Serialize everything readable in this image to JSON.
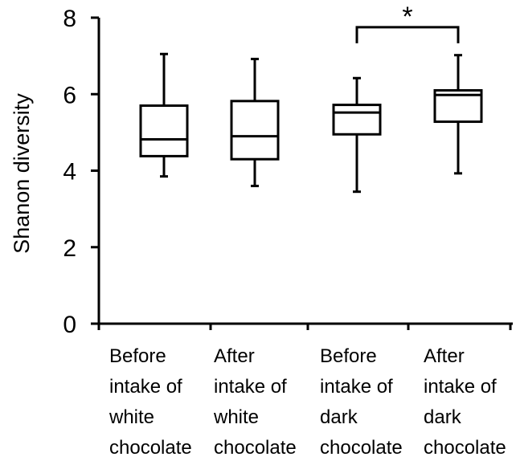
{
  "chart_data": {
    "type": "box",
    "title": "",
    "xlabel": "",
    "ylabel": "Shanon diversity",
    "ylim": [
      0,
      8
    ],
    "yticks": [
      "0",
      "2",
      "4",
      "6",
      "8"
    ],
    "grid": false,
    "categories": [
      [
        "Before",
        "intake of",
        "white",
        "chocolate"
      ],
      [
        "After",
        "intake of",
        "white",
        "chocolate"
      ],
      [
        "Before",
        "intake of",
        "dark",
        "chocolate"
      ],
      [
        "After",
        "intake of",
        "dark",
        "chocolate"
      ]
    ],
    "boxes": [
      {
        "whisker_low": 3.85,
        "q1": 4.38,
        "median": 4.82,
        "q3": 5.7,
        "whisker_high": 7.05
      },
      {
        "whisker_low": 3.6,
        "q1": 4.3,
        "median": 4.9,
        "q3": 5.82,
        "whisker_high": 6.92
      },
      {
        "whisker_low": 3.45,
        "q1": 4.95,
        "median": 5.52,
        "q3": 5.72,
        "whisker_high": 6.42
      },
      {
        "whisker_low": 3.93,
        "q1": 5.28,
        "median": 5.98,
        "q3": 6.1,
        "whisker_high": 7.02
      }
    ],
    "significance": {
      "groups": [
        2,
        3
      ],
      "label": "*",
      "level": 7.75
    }
  }
}
